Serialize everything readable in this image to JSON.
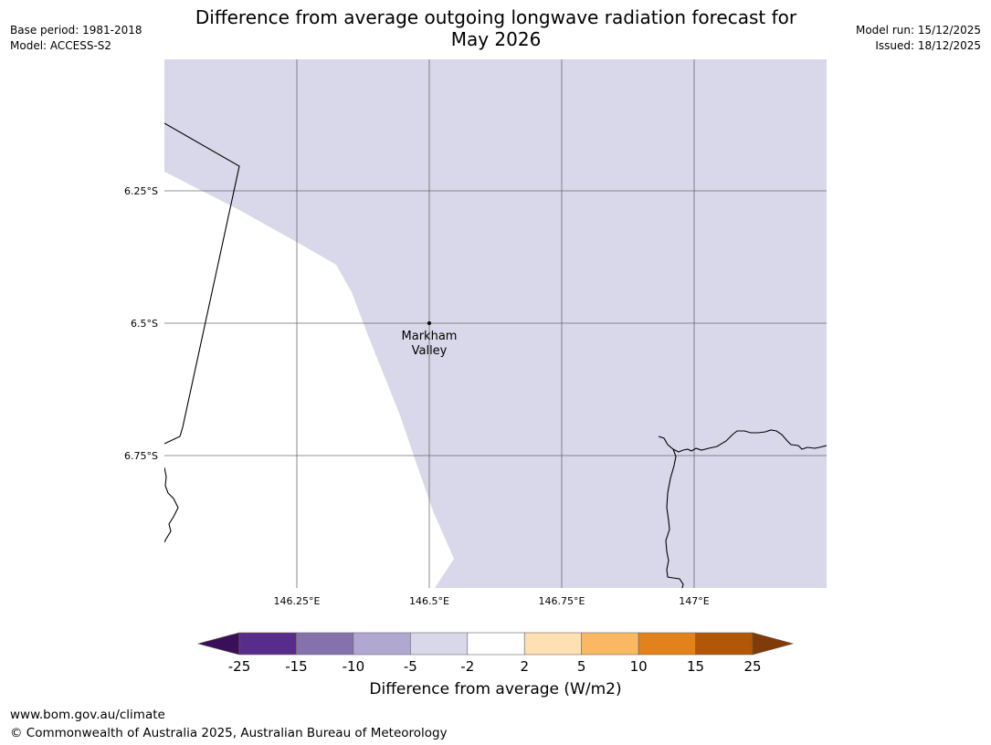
{
  "header": {
    "title_line1": "Difference from average outgoing longwave radiation forecast for",
    "title_line2": "May 2026",
    "base_period": "Base period: 1981-2018",
    "model": "Model: ACCESS-S2",
    "model_run": "Model run: 15/12/2025",
    "issued": "Issued: 18/12/2025"
  },
  "map": {
    "lat_labels": [
      "6.25°S",
      "6.5°S",
      "6.75°S"
    ],
    "lon_labels": [
      "146.25°E",
      "146.5°E",
      "146.75°E",
      "147°E"
    ],
    "place": {
      "name_line1": "Markham",
      "name_line2": "Valley"
    },
    "shaded_class": "-5 to -2",
    "shaded_color": "#d8d8ea"
  },
  "colorbar": {
    "label": "Difference from average (W/m2)",
    "ticks": [
      "-25",
      "-15",
      "-10",
      "-5",
      "-2",
      "2",
      "5",
      "10",
      "15",
      "25"
    ],
    "colors": [
      "#582c8a",
      "#8572ad",
      "#b1a8d2",
      "#d8d8ea",
      "#ffffff",
      "#fee0b3",
      "#fbb863",
      "#e1821b",
      "#b25707"
    ],
    "low_extend_color": "#3a0f5a",
    "high_extend_color": "#7f3c09"
  },
  "footer": {
    "url": "www.bom.gov.au/climate",
    "copyright": "© Commonwealth of Australia 2025, Australian Bureau of Meteorology"
  }
}
